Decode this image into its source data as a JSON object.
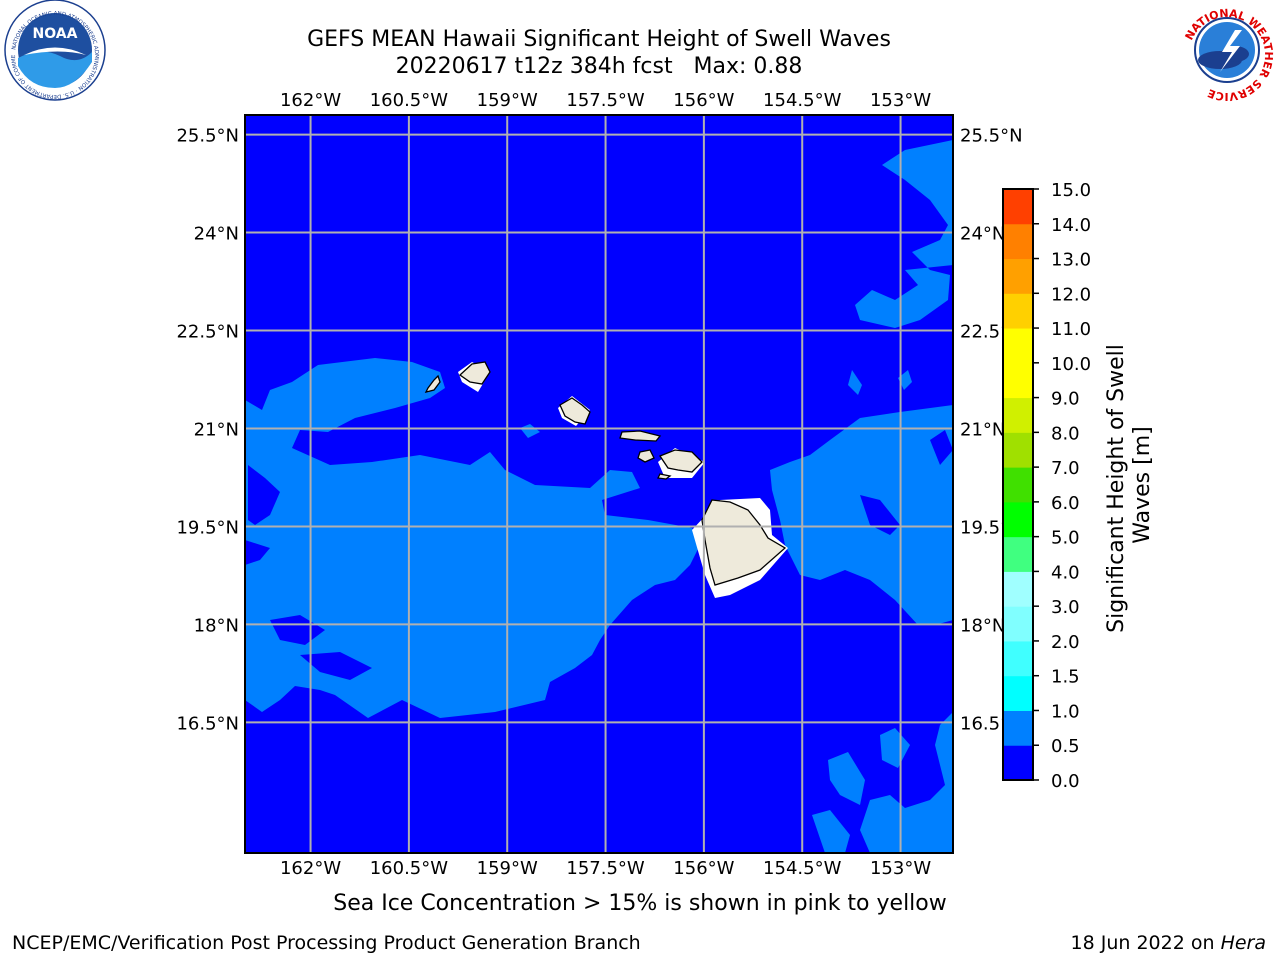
{
  "title": {
    "line1": "GEFS MEAN Hawaii Significant Height of Swell Waves",
    "line2": "20220617 t12z 384h fcst   Max: 0.88"
  },
  "logos": {
    "left": {
      "icon": "noaa-logo",
      "text": "NOAA",
      "ring_text": "NATIONAL OCEANIC AND ATMOSPHERIC ADMINISTRATION · U.S. DEPARTMENT OF COMMERCE"
    },
    "right": {
      "icon": "nws-logo",
      "ring_text": "NATIONAL WEATHER SERVICE"
    }
  },
  "map": {
    "lon_range": [
      -163,
      -152.2
    ],
    "lat_range": [
      14.5,
      25.8
    ],
    "lon_ticks": [
      "162°W",
      "160.5°W",
      "159°W",
      "157.5°W",
      "156°W",
      "154.5°W",
      "153°W"
    ],
    "lon_tick_values": [
      -162,
      -160.5,
      -159,
      -157.5,
      -156,
      -154.5,
      -153
    ],
    "lat_ticks": [
      "25.5°N",
      "24°N",
      "22.5°N",
      "21°N",
      "19.5°N",
      "18°N",
      "16.5°N"
    ],
    "lat_tick_values": [
      25.5,
      24,
      22.5,
      21,
      19.5,
      18,
      16.5
    ],
    "ocean_color": "#0000ff",
    "band_color": "#0080ff",
    "land_color": "#eeeadb",
    "gridline_color": "#b0b0b0"
  },
  "colorbar": {
    "label_line1": "Significant Height of Swell",
    "label_line2": "Waves [m]",
    "levels": [
      "0.0",
      "0.5",
      "1.0",
      "1.5",
      "2.0",
      "3.0",
      "4.0",
      "5.0",
      "6.0",
      "7.0",
      "8.0",
      "9.0",
      "10.0",
      "11.0",
      "12.0",
      "13.0",
      "14.0",
      "15.0"
    ],
    "colors": [
      "#0000ff",
      "#0080ff",
      "#00ffff",
      "#40ffff",
      "#80ffff",
      "#a0ffff",
      "#40ff80",
      "#00ff00",
      "#40e000",
      "#a0e000",
      "#d0f000",
      "#ffff00",
      "#ffff00",
      "#ffd000",
      "#ffa000",
      "#ff8000",
      "#ff4000",
      "#ff0000"
    ]
  },
  "caption": "Sea Ice Concentration > 15% is shown in pink to yellow",
  "credit": "NCEP/EMC/Verification Post Processing Product Generation Branch",
  "datestamp": {
    "date": "18 Jun 2022 on ",
    "host": "Hera"
  }
}
